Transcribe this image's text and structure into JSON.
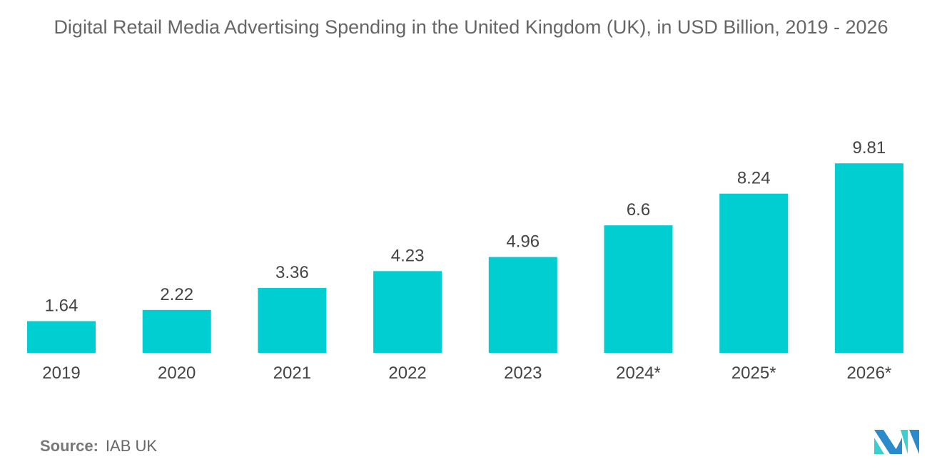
{
  "chart_data": {
    "type": "bar",
    "title": "Digital Retail Media Advertising Spending in the United Kingdom (UK), in USD Billion, 2019 - 2026",
    "categories": [
      "2019",
      "2020",
      "2021",
      "2022",
      "2023",
      "2024*",
      "2025*",
      "2026*"
    ],
    "values": [
      1.64,
      2.22,
      3.36,
      4.23,
      4.96,
      6.6,
      8.24,
      9.81
    ],
    "data_labels": [
      "1.64",
      "2.22",
      "3.36",
      "4.23",
      "4.96",
      "6.6",
      "8.24",
      "9.81"
    ],
    "xlabel": "",
    "ylabel": "",
    "ylim": [
      0,
      10
    ],
    "grid": false,
    "bar_color": "#00CED1"
  },
  "source": {
    "label": "Source:",
    "value": "IAB UK"
  },
  "logo": {
    "colors": [
      "#2B8ACB",
      "#3CCFCF"
    ]
  }
}
